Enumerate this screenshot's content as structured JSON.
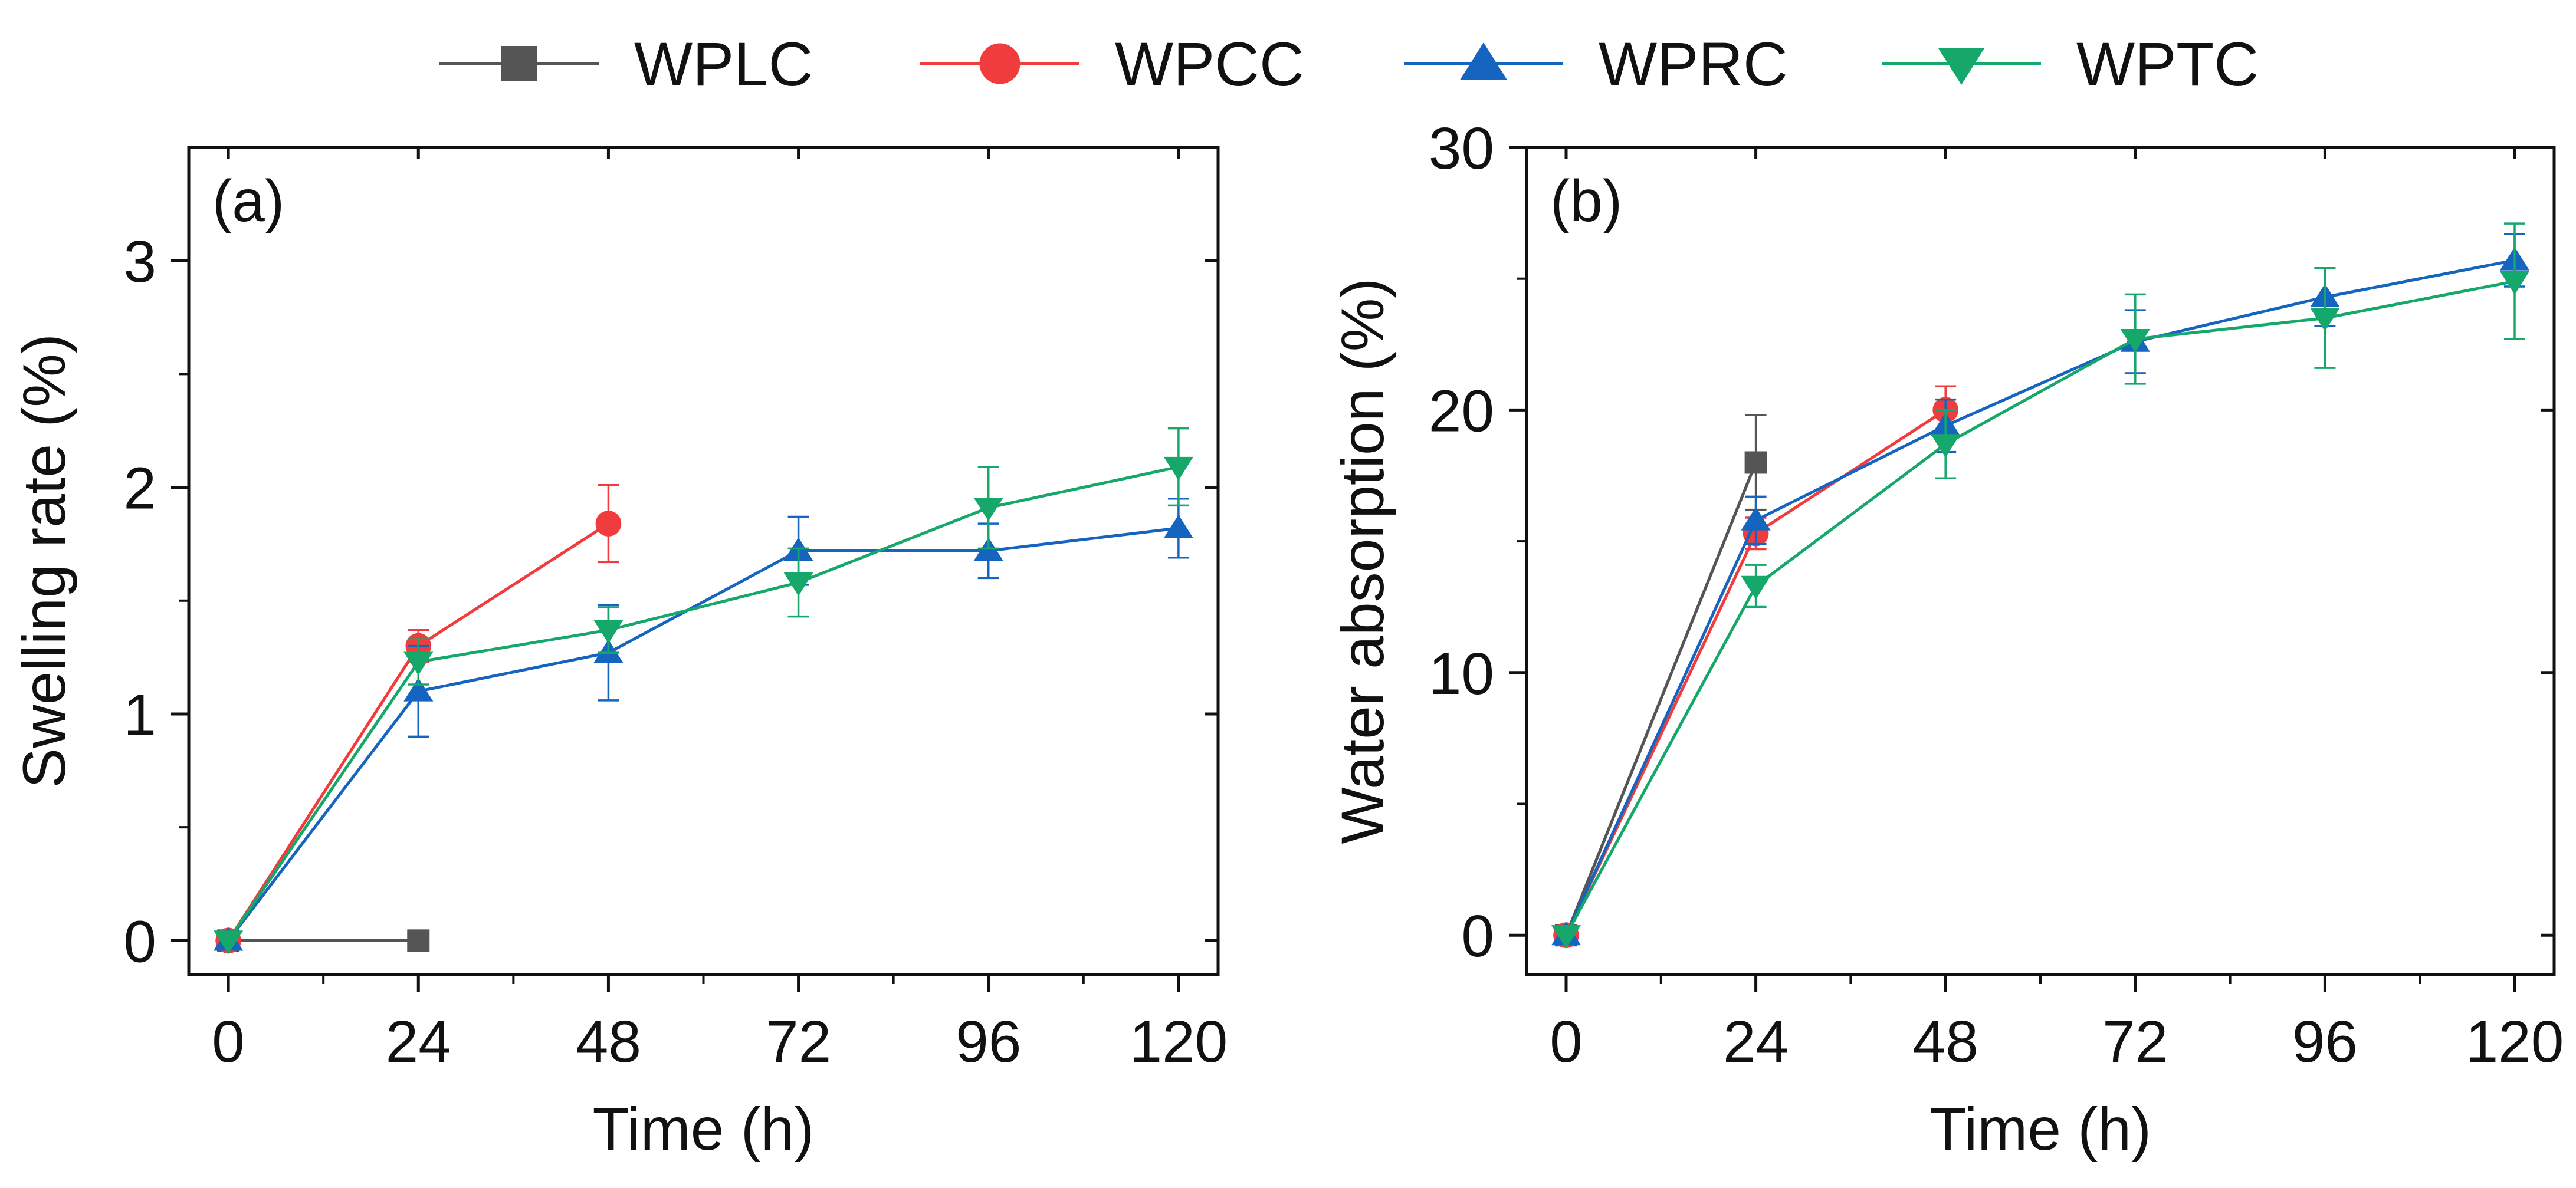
{
  "legend": [
    {
      "name": "WPLC",
      "color": "#555555",
      "marker": "square"
    },
    {
      "name": "WPCC",
      "color": "#f03c3c",
      "marker": "circle"
    },
    {
      "name": "WPRC",
      "color": "#1565c0",
      "marker": "triangle-up"
    },
    {
      "name": "WPTC",
      "color": "#16a86a",
      "marker": "triangle-down"
    }
  ],
  "chart_data": [
    {
      "type": "line",
      "panel_label": "(a)",
      "xlabel": "Time (h)",
      "ylabel": "Swelling rate (%)",
      "xlim": [
        -5,
        125
      ],
      "ylim": [
        -0.15,
        3.5
      ],
      "x_ticks": [
        0,
        24,
        48,
        72,
        96,
        120
      ],
      "y_ticks": [
        0,
        1,
        2,
        3
      ],
      "series": [
        {
          "name": "WPLC",
          "x": [
            0,
            24
          ],
          "values": [
            0,
            0
          ],
          "errors": [
            0,
            0
          ]
        },
        {
          "name": "WPCC",
          "x": [
            0,
            24,
            48
          ],
          "values": [
            0,
            1.3,
            1.84
          ],
          "errors": [
            0,
            0.07,
            0.17
          ]
        },
        {
          "name": "WPRC",
          "x": [
            0,
            24,
            48,
            72,
            96,
            120
          ],
          "values": [
            0,
            1.1,
            1.27,
            1.72,
            1.72,
            1.82
          ],
          "errors": [
            0,
            0.2,
            0.21,
            0.15,
            0.12,
            0.13
          ]
        },
        {
          "name": "WPTC",
          "x": [
            0,
            24,
            48,
            72,
            96,
            120
          ],
          "values": [
            0,
            1.23,
            1.37,
            1.58,
            1.91,
            2.09
          ],
          "errors": [
            0,
            0.1,
            0.1,
            0.15,
            0.18,
            0.17
          ]
        }
      ]
    },
    {
      "type": "line",
      "panel_label": "(b)",
      "xlabel": "Time (h)",
      "ylabel": "Water absorption (%)",
      "xlim": [
        -5,
        125
      ],
      "ylim": [
        -1.5,
        30
      ],
      "x_ticks": [
        0,
        24,
        48,
        72,
        96,
        120
      ],
      "y_ticks": [
        0,
        10,
        20,
        30
      ],
      "series": [
        {
          "name": "WPLC",
          "x": [
            0,
            24
          ],
          "values": [
            0,
            18
          ],
          "errors": [
            0,
            1.8
          ]
        },
        {
          "name": "WPCC",
          "x": [
            0,
            24,
            48
          ],
          "values": [
            0,
            15.3,
            20
          ],
          "errors": [
            0,
            0.6,
            0.9
          ]
        },
        {
          "name": "WPRC",
          "x": [
            0,
            24,
            48,
            72,
            96,
            120
          ],
          "values": [
            0,
            15.8,
            19.4,
            22.6,
            24.3,
            25.7
          ],
          "errors": [
            0,
            0.9,
            1.0,
            1.2,
            1.1,
            1.0
          ]
        },
        {
          "name": "WPTC",
          "x": [
            0,
            24,
            48,
            72,
            96,
            120
          ],
          "values": [
            0,
            13.3,
            18.7,
            22.7,
            23.5,
            24.9
          ],
          "errors": [
            0,
            0.8,
            1.3,
            1.7,
            1.9,
            2.2
          ]
        }
      ]
    }
  ]
}
